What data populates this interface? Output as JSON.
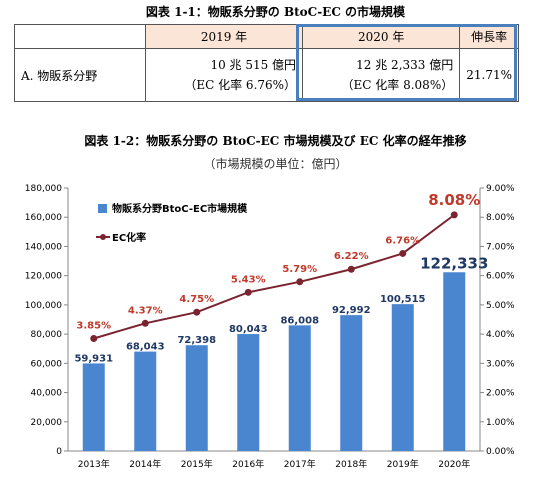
{
  "table_title": "図表 1-1：物販系分野の BtoC-EC の市場規模",
  "table": {
    "headers": [
      "",
      "2019 年",
      "2020 年",
      "伸長率"
    ],
    "row_label": "A. 物販系分野",
    "y2019_size": "10 兆 515 億円",
    "y2019_rate": "（EC 化率 6.76%）",
    "y2020_size": "12 兆 2,333 億円",
    "y2020_rate": "（EC 化率 8.08%）",
    "growth": "21.71%"
  },
  "chart_title": "図表 1-2：物販系分野の BtoC-EC 市場規模及び EC 化率の経年推移",
  "chart_unit": "（市場規模の単位：億円）",
  "chart_data": {
    "type": "bar",
    "categories": [
      "2013年",
      "2014年",
      "2015年",
      "2016年",
      "2017年",
      "2018年",
      "2019年",
      "2020年"
    ],
    "series": [
      {
        "name": "物販系分野BtoC-EC市場規模",
        "type": "bar",
        "axis": "left",
        "values": [
          59931,
          68043,
          72398,
          80043,
          86008,
          92992,
          100515,
          122333
        ],
        "labels": [
          "59,931",
          "68,043",
          "72,398",
          "80,043",
          "86,008",
          "92,992",
          "100,515",
          "122,333"
        ],
        "color": "#4a86d0"
      },
      {
        "name": "EC化率",
        "type": "line",
        "axis": "right",
        "values": [
          3.85,
          4.37,
          4.75,
          5.43,
          5.79,
          6.22,
          6.76,
          8.08
        ],
        "labels": [
          "3.85%",
          "4.37%",
          "4.75%",
          "5.43%",
          "5.79%",
          "6.22%",
          "6.76%",
          "8.08%"
        ],
        "color": "#7b2430"
      }
    ],
    "y_left": {
      "min": 0,
      "max": 180000,
      "ticks": [
        "0",
        "20,000",
        "40,000",
        "60,000",
        "80,000",
        "100,000",
        "120,000",
        "140,000",
        "160,000",
        "180,000"
      ]
    },
    "y_right": {
      "min": 0,
      "max": 9,
      "ticks": [
        "0.00%",
        "1.00%",
        "2.00%",
        "3.00%",
        "4.00%",
        "5.00%",
        "6.00%",
        "7.00%",
        "8.00%",
        "9.00%"
      ]
    },
    "legend_position": "top-left",
    "grid": false
  }
}
